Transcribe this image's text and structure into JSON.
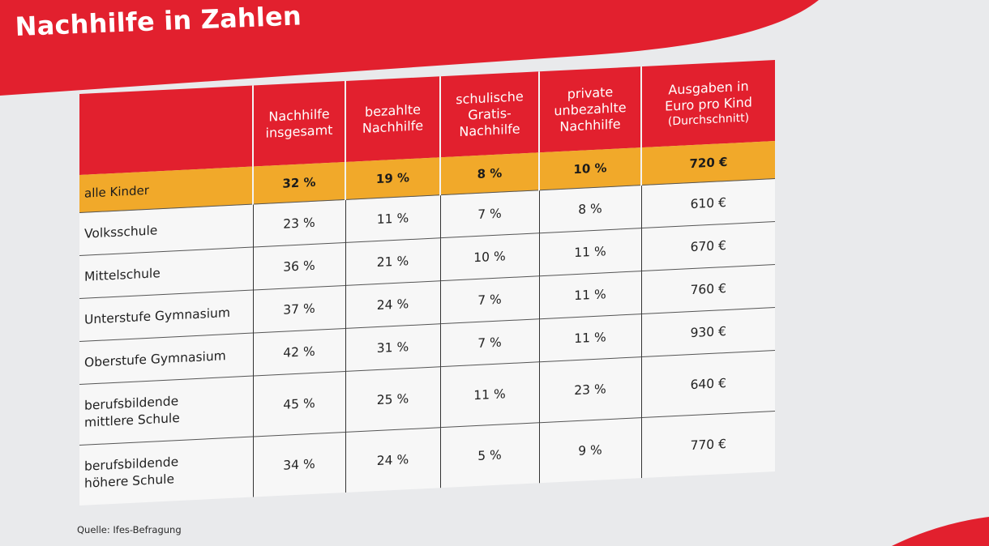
{
  "page": {
    "title": "Nachhilfe in Zahlen",
    "source_note": "Quelle: Ifes-Befragung"
  },
  "colors": {
    "brand_red": "#e2202e",
    "highlight_orange": "#f1a92a",
    "background": "#e9eaec"
  },
  "table": {
    "columns": [
      {
        "line1": "Nachhilfe",
        "line2": "insgesamt",
        "sub": ""
      },
      {
        "line1": "bezahlte",
        "line2": "Nachhilfe",
        "sub": ""
      },
      {
        "line1": "schulische",
        "line2": "Gratis-",
        "line3": "Nachhilfe",
        "sub": ""
      },
      {
        "line1": "private",
        "line2": "unbezahlte",
        "line3": "Nachhilfe",
        "sub": ""
      },
      {
        "line1": "Ausgaben in",
        "line2": "Euro pro Kind",
        "sub": "(Durchschnitt)"
      }
    ],
    "total_row": {
      "label": "alle Kinder",
      "values": [
        "32 %",
        "19 %",
        "8 %",
        "10 %",
        "720 €"
      ]
    },
    "rows": [
      {
        "label": "Volksschule",
        "label2": "",
        "values": [
          "23 %",
          "11 %",
          "7 %",
          "8 %",
          "610 €"
        ]
      },
      {
        "label": "Mittelschule",
        "label2": "",
        "values": [
          "36 %",
          "21 %",
          "10 %",
          "11 %",
          "670 €"
        ]
      },
      {
        "label": "Unterstufe Gymnasium",
        "label2": "",
        "values": [
          "37 %",
          "24 %",
          "7 %",
          "11 %",
          "760 €"
        ]
      },
      {
        "label": "Oberstufe Gymnasium",
        "label2": "",
        "values": [
          "42 %",
          "31 %",
          "7 %",
          "11 %",
          "930 €"
        ]
      },
      {
        "label": "berufsbildende",
        "label2": "mittlere Schule",
        "values": [
          "45 %",
          "25 %",
          "11 %",
          "23 %",
          "640 €"
        ]
      },
      {
        "label": "berufsbildende",
        "label2": "höhere Schule",
        "values": [
          "34 %",
          "24 %",
          "5 %",
          "9 %",
          "770 €"
        ]
      }
    ]
  }
}
